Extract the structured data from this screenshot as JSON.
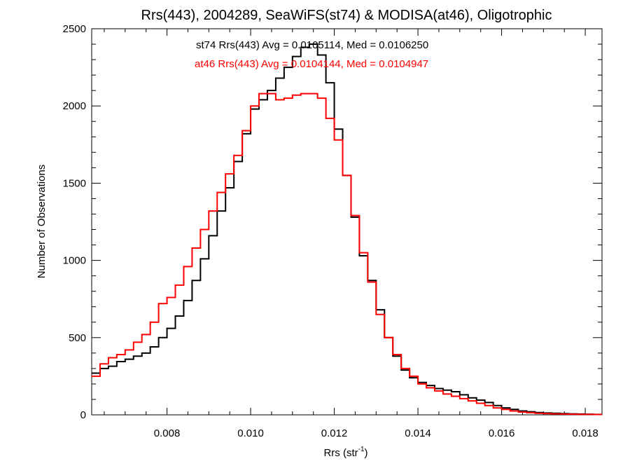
{
  "chart_data": {
    "type": "line",
    "step": true,
    "title": "Rrs(443), 2004289, SeaWiFS(st74) & MODISA(at46), Oligotrophic",
    "xlabel_main": "Rrs (str",
    "xlabel_sup": "-1",
    "xlabel_close": ")",
    "ylabel": "Number of Observations",
    "xlim": [
      0.0062,
      0.0184
    ],
    "ylim": [
      0,
      2500
    ],
    "xticks": [
      0.008,
      0.01,
      0.012,
      0.014,
      0.016,
      0.018
    ],
    "xtick_labels": [
      "0.008",
      "0.010",
      "0.012",
      "0.014",
      "0.016",
      "0.018"
    ],
    "yticks": [
      0,
      500,
      1000,
      1500,
      2000,
      2500
    ],
    "ytick_labels": [
      "0",
      "500",
      "1000",
      "1500",
      "2000",
      "2500"
    ],
    "annotations": [
      {
        "text": "st74 Rrs(443) Avg = 0.0105114, Med = 0.0106250",
        "color": "#000000"
      },
      {
        "text": "at46 Rrs(443) Avg = 0.0104144, Med = 0.0104947",
        "color": "#ff0000"
      }
    ],
    "series": [
      {
        "color": "#000000",
        "x": [
          0.0062,
          0.0064,
          0.0066,
          0.0068,
          0.007,
          0.0072,
          0.0074,
          0.0076,
          0.0078,
          0.008,
          0.0082,
          0.0084,
          0.0086,
          0.0088,
          0.009,
          0.0092,
          0.0094,
          0.0096,
          0.0098,
          0.01,
          0.0102,
          0.0104,
          0.0106,
          0.0108,
          0.011,
          0.0112,
          0.0114,
          0.0116,
          0.0118,
          0.012,
          0.0122,
          0.0124,
          0.0126,
          0.0128,
          0.013,
          0.0132,
          0.0134,
          0.0136,
          0.0138,
          0.014,
          0.0142,
          0.0144,
          0.0146,
          0.0148,
          0.015,
          0.0152,
          0.0154,
          0.0156,
          0.0158,
          0.016,
          0.0162,
          0.0164,
          0.0166,
          0.0168,
          0.017,
          0.0172,
          0.0174,
          0.0176,
          0.0178,
          0.018,
          0.0182,
          0.0184
        ],
        "y": [
          270,
          300,
          315,
          345,
          360,
          380,
          400,
          440,
          500,
          560,
          640,
          740,
          870,
          1010,
          1160,
          1320,
          1470,
          1640,
          1820,
          1980,
          2040,
          2100,
          2180,
          2250,
          2320,
          2380,
          2400,
          2330,
          2150,
          1850,
          1550,
          1280,
          1030,
          870,
          680,
          500,
          380,
          290,
          240,
          210,
          190,
          170,
          160,
          150,
          130,
          110,
          95,
          80,
          60,
          45,
          35,
          25,
          20,
          15,
          12,
          10,
          8,
          6,
          5,
          4,
          3,
          3
        ]
      },
      {
        "color": "#ff0000",
        "x": [
          0.0062,
          0.0064,
          0.0066,
          0.0068,
          0.007,
          0.0072,
          0.0074,
          0.0076,
          0.0078,
          0.008,
          0.0082,
          0.0084,
          0.0086,
          0.0088,
          0.009,
          0.0092,
          0.0094,
          0.0096,
          0.0098,
          0.01,
          0.0102,
          0.0104,
          0.0106,
          0.0108,
          0.011,
          0.0112,
          0.0114,
          0.0116,
          0.0118,
          0.012,
          0.0122,
          0.0124,
          0.0126,
          0.0128,
          0.013,
          0.0132,
          0.0134,
          0.0136,
          0.0138,
          0.014,
          0.0142,
          0.0144,
          0.0146,
          0.0148,
          0.015,
          0.0152,
          0.0154,
          0.0156,
          0.0158,
          0.016,
          0.0162,
          0.0164,
          0.0166,
          0.0168,
          0.017,
          0.0172,
          0.0174,
          0.0176,
          0.0178,
          0.018,
          0.0182,
          0.0184
        ],
        "y": [
          250,
          330,
          370,
          390,
          420,
          470,
          520,
          600,
          720,
          760,
          840,
          960,
          1080,
          1200,
          1320,
          1440,
          1560,
          1680,
          1840,
          2000,
          2080,
          2080,
          2040,
          2050,
          2070,
          2080,
          2080,
          2050,
          1920,
          1780,
          1550,
          1290,
          1050,
          860,
          650,
          500,
          390,
          300,
          250,
          200,
          175,
          155,
          135,
          120,
          105,
          90,
          75,
          60,
          45,
          35,
          25,
          18,
          14,
          10,
          8,
          6,
          5,
          4,
          3,
          3,
          2,
          2
        ]
      }
    ]
  }
}
